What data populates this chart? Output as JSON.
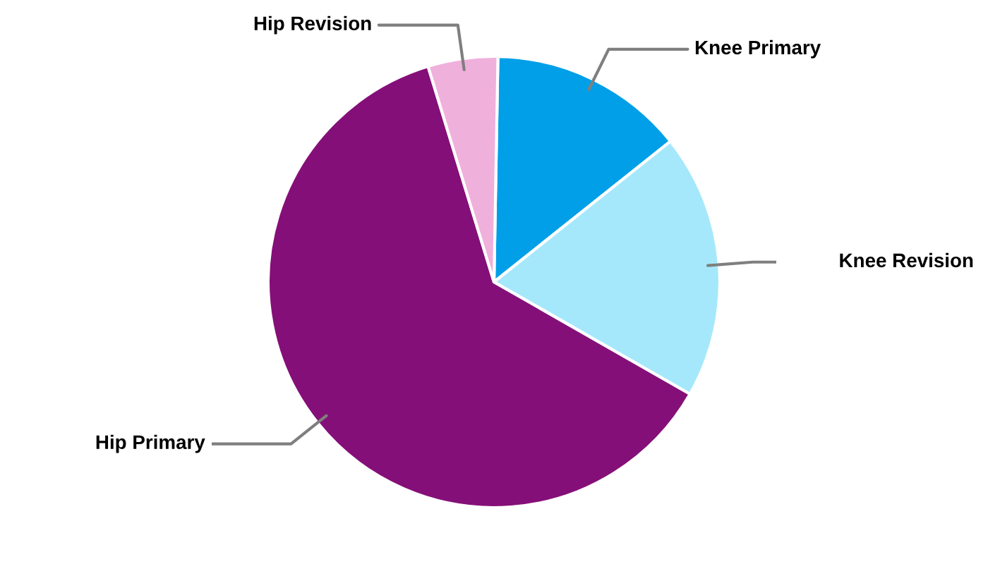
{
  "chart_data": {
    "type": "pie",
    "categories": [
      "Knee Primary",
      "Knee Revision",
      "Hip Primary",
      "Hip Revision"
    ],
    "values": [
      14,
      19,
      62,
      5
    ],
    "colors": [
      "#009fe8",
      "#a6e8fb",
      "#850f78",
      "#f0b0dc"
    ],
    "legend": false
  }
}
